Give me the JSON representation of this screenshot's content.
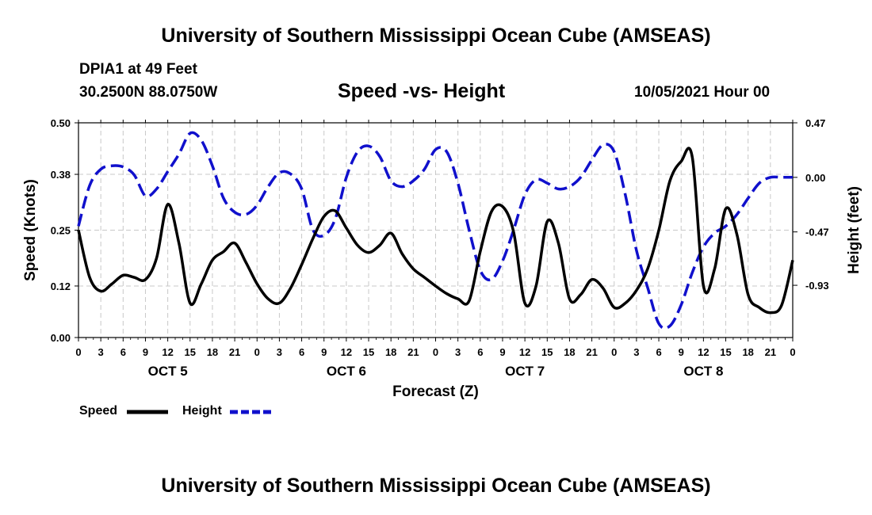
{
  "header": {
    "title": "University of Southern Mississippi Ocean Cube (AMSEAS)",
    "station": "DPIA1 at 49 Feet",
    "coords": "30.2500N  88.0750W",
    "subtitle": "Speed -vs- Height",
    "datetime": "10/05/2021 Hour 00"
  },
  "footer": {
    "title": "University of Southern Mississippi Ocean Cube (AMSEAS)"
  },
  "legend": {
    "speed_label": "Speed",
    "height_label": "Height"
  },
  "colors": {
    "speed": "#000000",
    "height": "#1010cc",
    "grid": "#c8c8c8"
  },
  "chart_data": {
    "type": "line",
    "title": "Speed -vs- Height",
    "xlabel": "Forecast (Z)",
    "ylabel": "Speed (Knots)",
    "y2label": "Height (feet)",
    "xlim": [
      0,
      96
    ],
    "ylim": [
      0,
      0.5
    ],
    "y2lim": [
      -1.38,
      0.47
    ],
    "x_ticks": [
      0,
      3,
      6,
      9,
      12,
      15,
      18,
      21,
      24,
      27,
      30,
      33,
      36,
      39,
      42,
      45,
      48,
      51,
      54,
      57,
      60,
      63,
      66,
      69,
      72,
      75,
      78,
      81,
      84,
      87,
      90,
      93,
      96
    ],
    "x_tick_labels": [
      "0",
      "3",
      "6",
      "9",
      "12",
      "15",
      "18",
      "21",
      "0",
      "3",
      "6",
      "9",
      "12",
      "15",
      "18",
      "21",
      "0",
      "3",
      "6",
      "9",
      "12",
      "15",
      "18",
      "21",
      "0",
      "3",
      "6",
      "9",
      "12",
      "15",
      "18",
      "21",
      "0"
    ],
    "day_labels": [
      {
        "x": 12,
        "label": "OCT 5"
      },
      {
        "x": 36,
        "label": "OCT 6"
      },
      {
        "x": 60,
        "label": "OCT 7"
      },
      {
        "x": 84,
        "label": "OCT 8"
      }
    ],
    "y_ticks": [
      0.0,
      0.12,
      0.25,
      0.38,
      0.5
    ],
    "y_tick_labels": [
      "0.00",
      "0.12",
      "0.25",
      "0.38",
      "0.50"
    ],
    "y2_ticks": [
      0.47,
      0.0,
      -0.47,
      -0.93
    ],
    "y2_tick_labels": [
      "0.47",
      "0.00",
      "-0.47",
      "-0.93"
    ],
    "grid": true,
    "legend_position": "bottom-left",
    "series": [
      {
        "name": "Speed",
        "axis": "left",
        "style": "solid",
        "x": [
          0,
          1.5,
          3,
          4.5,
          6,
          7.5,
          9,
          10.5,
          12,
          13.5,
          15,
          16.5,
          18,
          19.5,
          21,
          22.5,
          24,
          25.5,
          27,
          28.5,
          30,
          31.5,
          33,
          34.5,
          36,
          37.5,
          39,
          40.5,
          42,
          43.5,
          45,
          46.5,
          48,
          49.5,
          51,
          52.5,
          54,
          55.5,
          57,
          58.5,
          60,
          61.5,
          63,
          64.5,
          66,
          67.5,
          69,
          70.5,
          72,
          73.5,
          75,
          76.5,
          78,
          79.5,
          81,
          82.5,
          84,
          85.5,
          87,
          88.5,
          90,
          91.5,
          93,
          94.5,
          96
        ],
        "values": [
          0.25,
          0.14,
          0.108,
          0.125,
          0.145,
          0.14,
          0.135,
          0.185,
          0.31,
          0.22,
          0.08,
          0.125,
          0.18,
          0.2,
          0.22,
          0.175,
          0.125,
          0.09,
          0.08,
          0.115,
          0.17,
          0.23,
          0.282,
          0.295,
          0.255,
          0.215,
          0.198,
          0.215,
          0.243,
          0.195,
          0.16,
          0.14,
          0.12,
          0.102,
          0.09,
          0.085,
          0.2,
          0.293,
          0.305,
          0.245,
          0.08,
          0.12,
          0.27,
          0.22,
          0.09,
          0.1,
          0.135,
          0.115,
          0.07,
          0.08,
          0.11,
          0.16,
          0.25,
          0.365,
          0.41,
          0.42,
          0.12,
          0.16,
          0.3,
          0.24,
          0.1,
          0.07,
          0.058,
          0.075,
          0.18
        ]
      },
      {
        "name": "Height",
        "axis": "right",
        "style": "dashed",
        "x": [
          0,
          1.5,
          3,
          4.5,
          6,
          7.5,
          9,
          10.5,
          12,
          13.5,
          15,
          16.5,
          18,
          19.5,
          21,
          22.5,
          24,
          25.5,
          27,
          28.5,
          30,
          31.5,
          33,
          34.5,
          36,
          37.5,
          39,
          40.5,
          42,
          43.5,
          45,
          46.5,
          48,
          49.5,
          51,
          52.5,
          54,
          55.5,
          57,
          58.5,
          60,
          61.5,
          63,
          64.5,
          66,
          67.5,
          69,
          70.5,
          72,
          73.5,
          75,
          76.5,
          78,
          79.5,
          81,
          82.5,
          84,
          85.5,
          87,
          88.5,
          90,
          91.5,
          93,
          94.5,
          96
        ],
        "values": [
          -0.42,
          -0.07,
          0.07,
          0.1,
          0.09,
          0.02,
          -0.16,
          -0.1,
          0.05,
          0.2,
          0.38,
          0.32,
          0.1,
          -0.18,
          -0.3,
          -0.32,
          -0.24,
          -0.08,
          0.04,
          0.03,
          -0.1,
          -0.45,
          -0.5,
          -0.36,
          0.0,
          0.22,
          0.27,
          0.18,
          -0.03,
          -0.08,
          -0.03,
          0.07,
          0.24,
          0.22,
          -0.05,
          -0.45,
          -0.8,
          -0.88,
          -0.72,
          -0.45,
          -0.15,
          -0.02,
          -0.05,
          -0.1,
          -0.08,
          0.0,
          0.15,
          0.28,
          0.22,
          -0.15,
          -0.63,
          -0.95,
          -1.26,
          -1.28,
          -1.1,
          -0.82,
          -0.6,
          -0.48,
          -0.42,
          -0.32,
          -0.18,
          -0.05,
          0.0,
          0.0,
          0.0
        ]
      }
    ]
  }
}
